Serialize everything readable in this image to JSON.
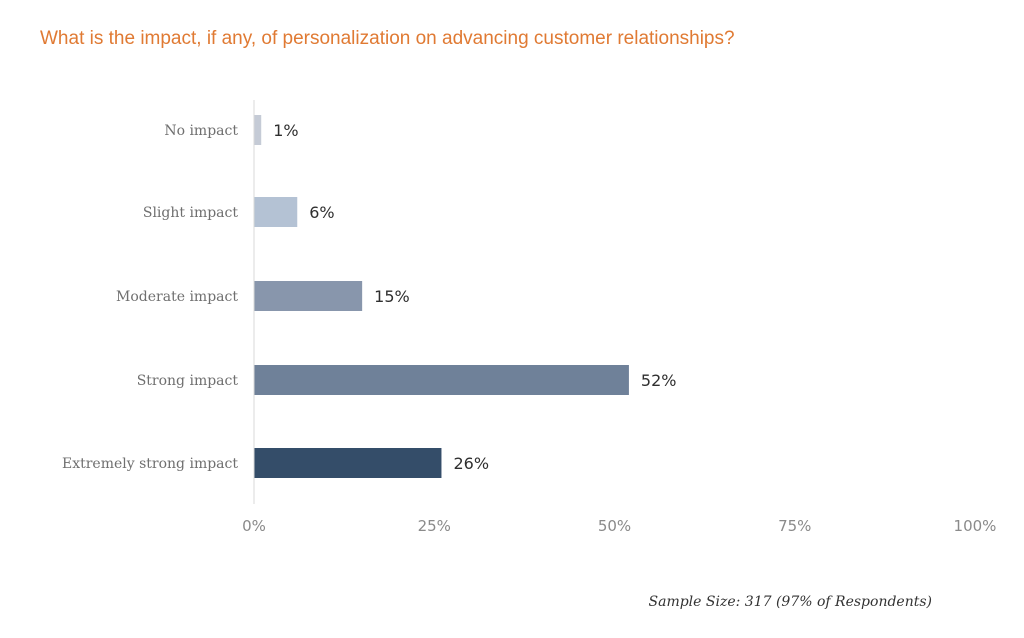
{
  "chart_data": {
    "type": "bar",
    "orientation": "horizontal",
    "title": "What is the impact, if any, of personalization on advancing customer relationships?",
    "categories": [
      "No impact",
      "Slight impact",
      "Moderate impact",
      "Strong impact",
      "Extremely strong impact"
    ],
    "values": [
      1,
      6,
      15,
      52,
      26
    ],
    "data_labels": [
      "1%",
      "6%",
      "15%",
      "52%",
      "26%"
    ],
    "bar_colors": [
      "#c5cbd6",
      "#b4c2d4",
      "#8896ac",
      "#6f8199",
      "#344d69"
    ],
    "xlim": [
      0,
      100
    ],
    "x_ticks": [
      0,
      25,
      50,
      75,
      100
    ],
    "x_tick_labels": [
      "0%",
      "25%",
      "50%",
      "75%",
      "100%"
    ],
    "grid": false,
    "legend": "none",
    "footnote": "Sample Size: 317 (97% of Respondents)",
    "colors": {
      "title": "#e07a33",
      "axis_line": "#d9d9d9"
    }
  }
}
